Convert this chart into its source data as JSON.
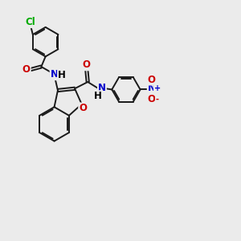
{
  "bg_color": "#ebebeb",
  "bond_color": "#1a1a1a",
  "atom_colors": {
    "N": "#0000cc",
    "O": "#cc0000",
    "Cl": "#00aa00",
    "H": "#000000",
    "plus": "#0000cc",
    "minus": "#cc0000"
  },
  "bond_width": 1.4,
  "font_size": 8.5
}
